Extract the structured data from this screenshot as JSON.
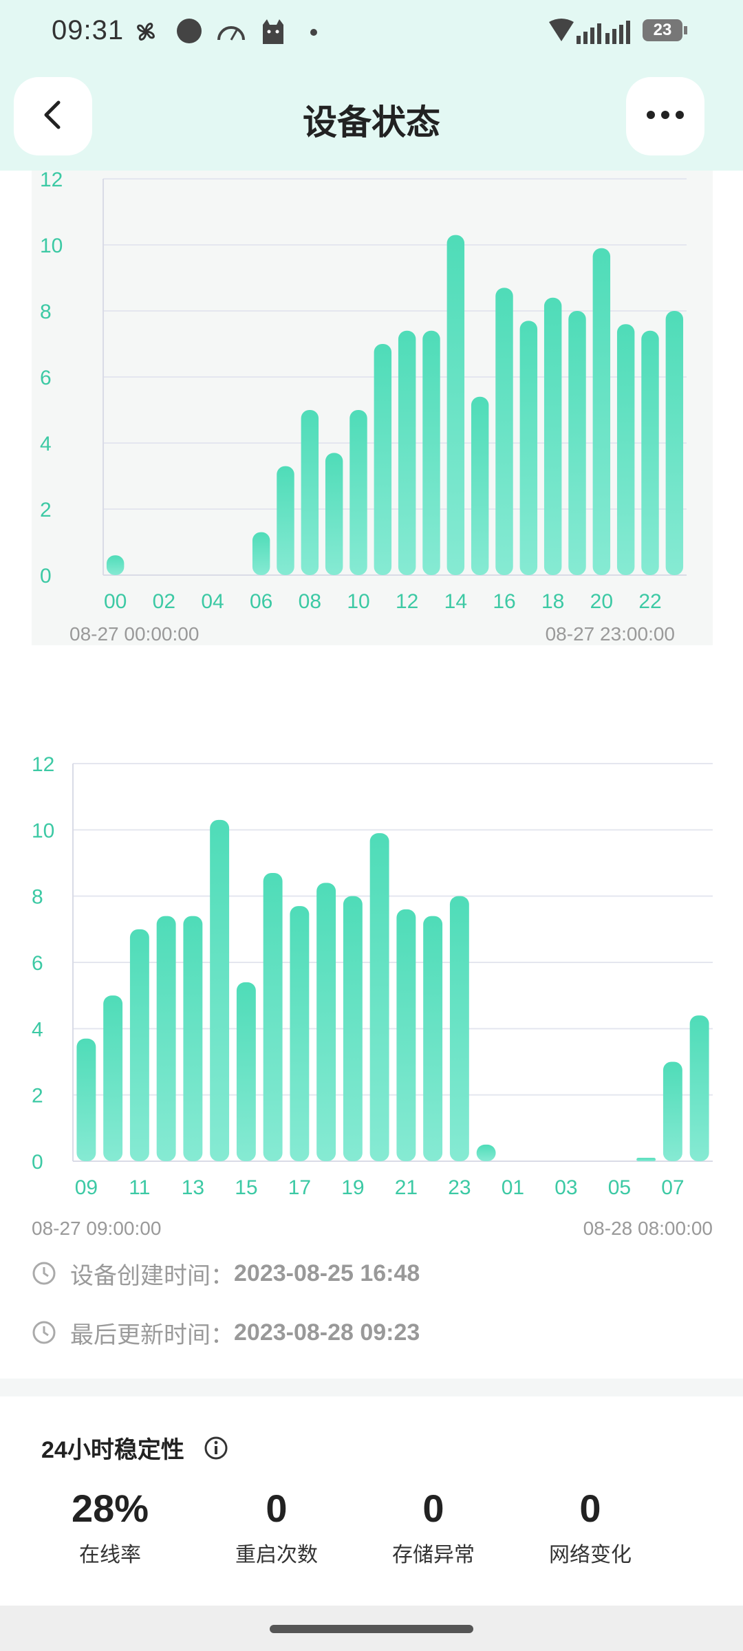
{
  "status_bar": {
    "time": "09:31",
    "battery": "23",
    "icons": [
      "pinwheel-icon",
      "circle-icon",
      "speedometer-icon",
      "cat-icon",
      "dot-icon",
      "wifi-icon",
      "signal-icon",
      "battery-icon"
    ]
  },
  "header": {
    "title": "设备状态",
    "back_icon": "chevron-left-icon",
    "more_icon": "more-dots-icon"
  },
  "chart1": {
    "range_start": "08-27 00:00:00",
    "range_end": "08-27 23:00:00"
  },
  "chart2": {
    "range_start": "08-27 09:00:00",
    "range_end": "08-28 08:00:00"
  },
  "info": {
    "created_label": "设备创建时间：",
    "created_value": "2023-08-25 16:48",
    "updated_label": "最后更新时间：",
    "updated_value": "2023-08-28 09:23"
  },
  "stability": {
    "title": "24小时稳定性",
    "stats": [
      {
        "value": "28%",
        "label": "在线率"
      },
      {
        "value": "0",
        "label": "重启次数"
      },
      {
        "value": "0",
        "label": "存储异常"
      },
      {
        "value": "0",
        "label": "网络变化"
      }
    ]
  },
  "colors": {
    "accent": "#4fdcb8",
    "axis_label": "#3cc9a4",
    "header_bg": "#e3f8f3"
  },
  "chart_data": [
    {
      "type": "bar",
      "title": "",
      "categories": [
        "00",
        "01",
        "02",
        "03",
        "04",
        "05",
        "06",
        "07",
        "08",
        "09",
        "10",
        "11",
        "12",
        "13",
        "14",
        "15",
        "16",
        "17",
        "18",
        "19",
        "20",
        "21",
        "22",
        "23"
      ],
      "tick_labels": [
        "00",
        "02",
        "04",
        "06",
        "08",
        "10",
        "12",
        "14",
        "16",
        "18",
        "20",
        "22"
      ],
      "values": [
        0.6,
        0,
        0,
        0,
        0,
        0,
        1.3,
        3.3,
        5.0,
        3.7,
        5.0,
        7.0,
        7.4,
        7.4,
        10.3,
        5.4,
        8.7,
        7.7,
        8.4,
        8.0,
        9.9,
        7.6,
        7.4,
        8.0
      ],
      "ylim": [
        0,
        12
      ],
      "yticks": [
        "0",
        "2",
        "4",
        "6",
        "8",
        "10",
        "12"
      ],
      "grid": true
    },
    {
      "type": "bar",
      "title": "",
      "categories": [
        "09",
        "10",
        "11",
        "12",
        "13",
        "14",
        "15",
        "16",
        "17",
        "18",
        "19",
        "20",
        "21",
        "22",
        "23",
        "00",
        "01",
        "02",
        "03",
        "04",
        "05",
        "06",
        "07",
        "08"
      ],
      "tick_labels": [
        "09",
        "11",
        "13",
        "15",
        "17",
        "19",
        "21",
        "23",
        "01",
        "03",
        "05",
        "07"
      ],
      "values": [
        3.7,
        5.0,
        7.0,
        7.4,
        7.4,
        10.3,
        5.4,
        8.7,
        7.7,
        8.4,
        8.0,
        9.9,
        7.6,
        7.4,
        8.0,
        0.5,
        0,
        0,
        0,
        0,
        0,
        0.1,
        3.0,
        4.4
      ],
      "ylim": [
        0,
        12
      ],
      "yticks": [
        "0",
        "2",
        "4",
        "6",
        "8",
        "10",
        "12"
      ],
      "grid": true
    }
  ]
}
